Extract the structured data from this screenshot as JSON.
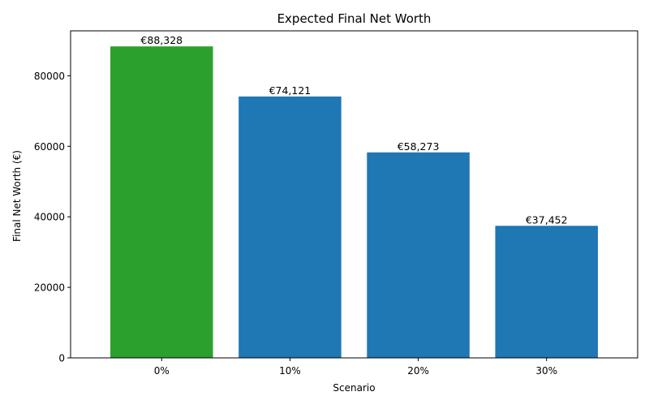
{
  "chart_data": {
    "type": "bar",
    "title": "Expected Final Net Worth",
    "xlabel": "Scenario",
    "ylabel": "Final Net Worth (€)",
    "categories": [
      "0%",
      "10%",
      "20%",
      "30%"
    ],
    "values": [
      88328,
      74121,
      58273,
      37452
    ],
    "value_labels": [
      "€88,328",
      "€74,121",
      "€58,273",
      "€37,452"
    ],
    "bar_colors": [
      "#2ca02c",
      "#1f77b4",
      "#1f77b4",
      "#1f77b4"
    ],
    "ylim": [
      0,
      92741
    ],
    "yticks": [
      0,
      20000,
      40000,
      60000,
      80000
    ],
    "ytick_labels": [
      "0",
      "20000",
      "40000",
      "60000",
      "80000"
    ],
    "grid": false,
    "legend": "none"
  }
}
